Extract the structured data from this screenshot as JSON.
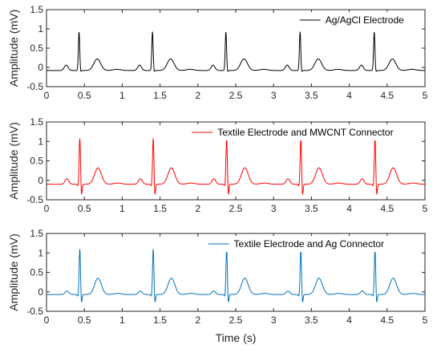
{
  "chart_data": [
    {
      "type": "line",
      "xlabel": "",
      "ylabel": "Amplitude (mV)",
      "xlim": [
        0,
        5
      ],
      "ylim": [
        -0.5,
        1.5
      ],
      "xticks": [
        0,
        0.5,
        1,
        1.5,
        2,
        2.5,
        3,
        3.5,
        4,
        4.5,
        5
      ],
      "yticks": [
        -0.5,
        0,
        0.5,
        1,
        1.5
      ],
      "grid": false,
      "legend_position": "top-right",
      "series": [
        {
          "name": "Ag/AgCl Electrode",
          "color": "#000000",
          "beat_times": [
            0.43,
            1.4,
            2.37,
            3.35,
            4.33
          ],
          "r_peak": 0.92,
          "q_dip": -0.08,
          "s_dip": -0.12,
          "p_wave": 0.06,
          "t_wave": 0.22,
          "baseline": -0.08
        }
      ]
    },
    {
      "type": "line",
      "xlabel": "",
      "ylabel": "Amplitude (mV)",
      "xlim": [
        0,
        5
      ],
      "ylim": [
        -0.5,
        1.5
      ],
      "xticks": [
        0,
        0.5,
        1,
        1.5,
        2,
        2.5,
        3,
        3.5,
        4,
        4.5,
        5
      ],
      "yticks": [
        -0.5,
        0,
        0.5,
        1,
        1.5
      ],
      "grid": false,
      "legend_position": "top-right",
      "series": [
        {
          "name": "Textile Electrode and MWCNT Connector",
          "color": "#ff0000",
          "beat_times": [
            0.44,
            1.41,
            2.38,
            3.36,
            4.34
          ],
          "r_peak": 1.08,
          "q_dip": -0.15,
          "s_dip": -0.4,
          "p_wave": 0.04,
          "t_wave": 0.32,
          "baseline": -0.1
        }
      ]
    },
    {
      "type": "line",
      "xlabel": "Time (s)",
      "ylabel": "Amplitude (mV)",
      "xlim": [
        0,
        5
      ],
      "ylim": [
        -0.5,
        1.5
      ],
      "xticks": [
        0,
        0.5,
        1,
        1.5,
        2,
        2.5,
        3,
        3.5,
        4,
        4.5,
        5
      ],
      "yticks": [
        -0.5,
        0,
        0.5,
        1,
        1.5
      ],
      "grid": false,
      "legend_position": "top-right",
      "series": [
        {
          "name": "Textile Electrode and Ag Connector",
          "color": "#0072bd",
          "beat_times": [
            0.44,
            1.41,
            2.38,
            3.36,
            4.34
          ],
          "r_peak": 1.1,
          "q_dip": -0.12,
          "s_dip": -0.3,
          "p_wave": 0.02,
          "t_wave": 0.35,
          "baseline": -0.07
        }
      ]
    }
  ]
}
